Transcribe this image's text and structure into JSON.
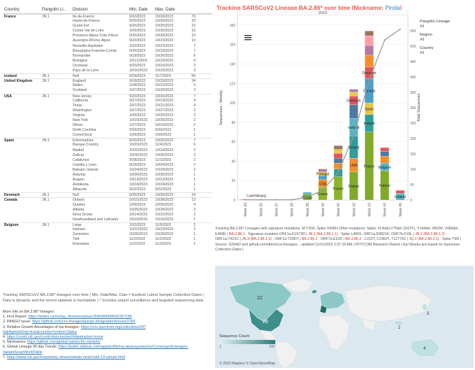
{
  "table": {
    "headers": {
      "country": "Country",
      "lineage": "Pangolin Li..",
      "division": "Division",
      "min": "Min. Date",
      "max": "Max. Date"
    },
    "rows": [
      {
        "country": "France",
        "lineage": "JN.1",
        "division": "Ile-de-France",
        "min": "9/10/2023",
        "max": "10/30/2023",
        "count": "79"
      },
      {
        "country": "",
        "lineage": "",
        "division": "Hauts-de-France",
        "min": "9/25/2023",
        "max": "10/30/2023",
        "count": "25"
      },
      {
        "country": "",
        "lineage": "",
        "division": "Grand Est",
        "min": "9/25/2023",
        "max": "10/30/2023",
        "count": "22"
      },
      {
        "country": "",
        "lineage": "",
        "division": "Centre-Val de Loire",
        "min": "10/9/2023",
        "max": "10/30/2023",
        "count": "16"
      },
      {
        "country": "",
        "lineage": "",
        "division": "Provence-Alpes-Cote d'Azur",
        "min": "9/25/2023",
        "max": "10/30/2023",
        "count": "10"
      },
      {
        "country": "",
        "lineage": "",
        "division": "Auvergne-Rhone-Alpes",
        "min": "9/23/2023",
        "max": "10/23/2023",
        "count": "10"
      },
      {
        "country": "",
        "lineage": "",
        "division": "Nouvelle-Aquitaine",
        "min": "10/2/2023",
        "max": "10/23/2023",
        "count": "7"
      },
      {
        "country": "",
        "lineage": "",
        "division": "Bourgogne-Franche-Comte",
        "min": "9/25/2023",
        "max": "10/23/2023",
        "count": "7"
      },
      {
        "country": "",
        "lineage": "",
        "division": "Normandie",
        "min": "9/18/2023",
        "max": "10/30/2023",
        "count": "6"
      },
      {
        "country": "",
        "lineage": "",
        "division": "Bretagne",
        "min": "10/11/2023",
        "max": "10/23/2023",
        "count": "6"
      },
      {
        "country": "",
        "lineage": "",
        "division": "Occitanie",
        "min": "9/25/2023",
        "max": "10/16/2023",
        "count": "3"
      },
      {
        "country": "",
        "lineage": "",
        "division": "Pays de la Loire",
        "min": "10/16/2023",
        "max": "10/23/2023",
        "count": "3"
      },
      {
        "country": "Iceland",
        "lineage": "JN.1",
        "division": "Null",
        "min": "9/29/2023",
        "max": "11/7/2023",
        "count": "56"
      },
      {
        "country": "United Kingdom",
        "lineage": "JN.1",
        "division": "England",
        "min": "9/18/2023",
        "max": "10/29/2023",
        "count": "34"
      },
      {
        "country": "",
        "lineage": "",
        "division": "Wales",
        "min": "10/8/2023",
        "max": "10/22/2023",
        "count": "5"
      },
      {
        "country": "",
        "lineage": "",
        "division": "Scotland",
        "min": "10/7/2023",
        "max": "10/29/2023",
        "count": "2"
      },
      {
        "country": "USA",
        "lineage": "JN.1",
        "division": "New Jersey",
        "min": "9/20/2023",
        "max": "10/16/2023",
        "count": "7"
      },
      {
        "country": "",
        "lineage": "",
        "division": "California",
        "min": "9/27/2023",
        "max": "10/19/2023",
        "count": "4"
      },
      {
        "country": "",
        "lineage": "",
        "division": "Texas",
        "min": "10/7/2023",
        "max": "10/21/2023",
        "count": "4"
      },
      {
        "country": "",
        "lineage": "",
        "division": "Washington",
        "min": "10/7/2023",
        "max": "10/27/2023",
        "count": "2"
      },
      {
        "country": "",
        "lineage": "",
        "division": "Virginia",
        "min": "10/9/2023",
        "max": "10/20/2023",
        "count": "2"
      },
      {
        "country": "",
        "lineage": "",
        "division": "New York",
        "min": "10/19/2023",
        "max": "10/30/2023",
        "count": "2"
      },
      {
        "country": "",
        "lineage": "",
        "division": "Illinois",
        "min": "10/7/2023",
        "max": "10/19/2023",
        "count": "2"
      },
      {
        "country": "",
        "lineage": "",
        "division": "North Carolina",
        "min": "9/29/2023",
        "max": "9/29/2023",
        "count": "1"
      },
      {
        "country": "",
        "lineage": "",
        "division": "Connecticut",
        "min": "10/9/2023",
        "max": "10/9/2023",
        "count": "1"
      },
      {
        "country": "Spain",
        "lineage": "JN.1",
        "division": "Extremadura",
        "min": "9/25/2023",
        "max": "10/26/2023",
        "count": "7"
      },
      {
        "country": "",
        "lineage": "",
        "division": "Basque Country",
        "min": "10/23/2023",
        "max": "11/4/2023",
        "count": "5"
      },
      {
        "country": "",
        "lineage": "",
        "division": "Madrid",
        "min": "10/20/2023",
        "max": "10/24/2023",
        "count": "2"
      },
      {
        "country": "",
        "lineage": "",
        "division": "Galicia",
        "min": "10/26/2023",
        "max": "10/26/2023",
        "count": "2"
      },
      {
        "country": "",
        "lineage": "",
        "division": "Catalunya",
        "min": "9/28/2023",
        "max": "11/1/2023",
        "count": "2"
      },
      {
        "country": "",
        "lineage": "",
        "division": "Castilla y Leon",
        "min": "9/29/2023",
        "max": "10/24/2023",
        "count": "2"
      },
      {
        "country": "",
        "lineage": "",
        "division": "Balearic Islands",
        "min": "10/24/2023",
        "max": "10/24/2023",
        "count": "2"
      },
      {
        "country": "",
        "lineage": "",
        "division": "Asturias",
        "min": "10/30/2023",
        "max": "10/30/2023",
        "count": "1"
      },
      {
        "country": "",
        "lineage": "",
        "division": "Aragon",
        "min": "10/13/2023",
        "max": "10/13/2023",
        "count": "1"
      },
      {
        "country": "",
        "lineage": "",
        "division": "Andalusia",
        "min": "10/24/2023",
        "max": "10/24/2023",
        "count": "1"
      },
      {
        "country": "",
        "lineage": "",
        "division": "Albacete",
        "min": "9/22/2023",
        "max": "9/22/2023",
        "count": "1"
      },
      {
        "country": "Denmark",
        "lineage": "JN.1",
        "division": "Null",
        "min": "9/25/2023",
        "max": "10/30/2023",
        "count": "24"
      },
      {
        "country": "Canada",
        "lineage": "JN.1",
        "division": "Ontario",
        "min": "10/15/2023",
        "max": "10/28/2023",
        "count": "13"
      },
      {
        "country": "",
        "lineage": "",
        "division": "Quebec",
        "min": "10/9/2023",
        "max": "10/30/2023",
        "count": "4"
      },
      {
        "country": "",
        "lineage": "",
        "division": "Alberta",
        "min": "10/25/2023",
        "max": "10/29/2023",
        "count": "3"
      },
      {
        "country": "",
        "lineage": "",
        "division": "Nova Scotia",
        "min": "10/14/2023",
        "max": "10/22/2023",
        "count": "2"
      },
      {
        "country": "",
        "lineage": "",
        "division": "Newfoundland and Labrador",
        "min": "10/16/2023",
        "max": "10/16/2023",
        "count": "1"
      },
      {
        "country": "Belgium",
        "lineage": "JN.1",
        "division": "Liege",
        "min": "10/2/2023",
        "max": "11/5/2023",
        "count": "2"
      },
      {
        "country": "",
        "lineage": "",
        "division": "Hainaut",
        "min": "10/22/2023",
        "max": "10/23/2023",
        "count": "2"
      },
      {
        "country": "",
        "lineage": "",
        "division": "Zaventem",
        "min": "10/29/2023",
        "max": "10/29/2023",
        "count": "1"
      },
      {
        "country": "",
        "lineage": "",
        "division": "Tielt",
        "min": "11/2/2023",
        "max": "11/2/2023",
        "count": "1"
      },
      {
        "country": "",
        "lineage": "",
        "division": "Roeselare",
        "min": "11/2/2023",
        "max": "11/2/2023",
        "count": "1"
      }
    ]
  },
  "footnote": "Tracking SARSCoV2 BA.2.86* lineages over time ( Min. Date/Max. Date = Earliest/ Latest Sample Collection Dates | Data is dynamic and the recent epiweek is incomplete ) * Includes airport surveillance and targeted sequencing data",
  "more_info": {
    "heading": "More info on BA.2.86* lineages:",
    "items": [
      {
        "label": "1. First Report: ",
        "link": "https://twitter.com/shay_fleishon/status/1690484068642357248"
      },
      {
        "label": "2. PANGO Issue: ",
        "link": "https://github.com/cov-lineages/pango-designation/issues/2183"
      },
      {
        "label": "3. Relative Growth Advantages of top lineages: ",
        "link": "https://cov-spectrum.org/collections/24?highlightedOnly=true&country=United+States"
      },
      {
        "label": "4. ",
        "link": "https://covid.cdc.gov/covid-data-tracker/#datatracker-home"
      },
      {
        "label": "5. Nicknames: ",
        "link": "https://github.com/global-names-for-variants/"
      },
      {
        "label": "6. Global Lineage 30 day Trends: ",
        "link": "https://public.tableau.com/app/profile/raj.rajnarayanan/viz/ConvergentLineages-VariantSoup/WorldTable"
      },
      {
        "label": "7. ",
        "link": "https://www.cdc.gov/respiratory-viruses/whats-new/covid-19-variant.html"
      }
    ]
  },
  "chart_title": {
    "prefix": "Tracking SARSCoV2 Lineage BA.2.86* over time (Nickname: ",
    "nickname": "Pirola",
    "suffix": ")"
  },
  "legend": {
    "pangolin_label": "Pangolin Lineage",
    "pangolin_value": "All",
    "region_label": "Region",
    "region_value": "All",
    "country_label": "Country",
    "country_value": "All"
  },
  "chart_data": {
    "type": "bar",
    "year_label": "2023",
    "ylabel_left": "Sequences - Weekly",
    "ylabel_right": "Total Sequences",
    "ylim_left": [
      0,
      190
    ],
    "ylim_right": [
      0,
      600
    ],
    "left_ticks": [
      0,
      20,
      40,
      60,
      80,
      100,
      120,
      140,
      160,
      180
    ],
    "right_ticks": [
      0,
      50,
      100,
      150,
      200,
      250,
      300,
      350,
      400,
      450,
      500,
      550
    ],
    "categories": [
      "Week 34",
      "Week 35",
      "Week 37",
      "Week 38",
      "Week 39",
      "Week 40",
      "Week 41",
      "Week 42",
      "Week 43",
      "Week 44",
      "Week 45"
    ],
    "stacks": [
      [
        {
          "country": "Luxembourg",
          "value": 1,
          "color": "#d96f9f"
        }
      ],
      [],
      [],
      [],
      [
        {
          "country": "France",
          "value": 6,
          "color": "#7faa2a"
        },
        {
          "country": "",
          "value": 2,
          "color": "#4bb3b0"
        }
      ],
      [
        {
          "country": "France",
          "value": 13,
          "color": "#8db52c"
        },
        {
          "country": "USA",
          "value": 8,
          "color": "#f28e2b"
        },
        {
          "country": "",
          "value": 4,
          "color": "#4aa0c8"
        },
        {
          "country": "Portugal",
          "value": 4,
          "color": "#e7c64a"
        },
        {
          "country": "",
          "value": 3,
          "color": "#b07aa1"
        }
      ],
      [
        {
          "country": "France",
          "value": 24,
          "color": "#8db52c"
        },
        {
          "country": "",
          "value": 8,
          "color": "#2f9e9a"
        },
        {
          "country": "",
          "value": 6,
          "color": "#f28e2b"
        },
        {
          "country": "",
          "value": 5,
          "color": "#4e79a7"
        },
        {
          "country": "",
          "value": 5,
          "color": "#e15759"
        },
        {
          "country": "",
          "value": 4,
          "color": "#edc948"
        },
        {
          "country": "",
          "value": 4,
          "color": "#9c755f"
        }
      ],
      [
        {
          "country": "France",
          "value": 29,
          "color": "#7faa2a"
        },
        {
          "country": "USA",
          "value": 14,
          "color": "#f28e2b"
        },
        {
          "country": "Iceland",
          "value": 23,
          "color": "#2f9e9a"
        },
        {
          "country": "Iceland",
          "value": 18,
          "color": "#59b4c3"
        },
        {
          "country": "",
          "value": 14,
          "color": "#4e79a7"
        },
        {
          "country": "Denmark",
          "value": 9,
          "color": "#e15759"
        },
        {
          "country": "",
          "value": 4,
          "color": "#edc948"
        },
        {
          "country": "",
          "value": 3,
          "color": "#b07aa1"
        }
      ],
      [
        {
          "country": "France",
          "value": 70,
          "color": "#7faa2a"
        },
        {
          "country": "Iceland",
          "value": 18,
          "color": "#2f9e9a"
        },
        {
          "country": "Spain",
          "value": 12,
          "color": "#e7c64a"
        },
        {
          "country": "Canada",
          "value": 25,
          "color": "#4aa0c8"
        },
        {
          "country": "Denmark",
          "value": 12,
          "color": "#e15759"
        },
        {
          "country": "",
          "value": 12,
          "color": "#f28e2b"
        },
        {
          "country": "",
          "value": 10,
          "color": "#b07aa1"
        },
        {
          "country": "",
          "value": 10,
          "color": "#ff9da7"
        },
        {
          "country": "",
          "value": 5,
          "color": "#9c755f"
        }
      ],
      [
        {
          "country": "France",
          "value": 30,
          "color": "#7faa2a"
        },
        {
          "country": "Belgium",
          "value": 8,
          "color": "#59b4c3"
        },
        {
          "country": "",
          "value": 7,
          "color": "#f28e2b"
        },
        {
          "country": "",
          "value": 5,
          "color": "#4e79a7"
        },
        {
          "country": "",
          "value": 4,
          "color": "#e15759"
        }
      ],
      [
        {
          "country": "Iceland",
          "value": 7,
          "color": "#59b4c3"
        },
        {
          "country": "",
          "value": 3,
          "color": "#e15759"
        }
      ]
    ],
    "cumulative": [
      1,
      1,
      1,
      1,
      9,
      32,
      90,
      210,
      390,
      520,
      555
    ]
  },
  "description": {
    "part1": "Tracking BA.2.86* Lineages with signature mutations: M:T30A, Spike:V445H Other mutations: Spike: I4,I6del,V70del (SGTF), Y144del, I452W, V483del, E484K | ",
    "p1": "BA.2.86.1",
    "part2": " : Signature mutation ORF1a:K1973R | ",
    "p2": "JN.1 (BA.2.86.1.1)",
    "part3": " : Spike L455S, ORF1a:R3821K, ORF7b:F19L | ",
    "p3": "JN.2 (BA.2.86.1.2)",
    "part4": " : ORF1a:Y621C | ",
    "p4": "JN.3 (BA.2.86.1.3)",
    "part5": " : ORF1a:T2087I | ",
    "p5": "BA.2.86.2",
    "part6": " : ORF7a:E22D | ",
    "p6": "BA.2.86.3",
    "part7": " : C222T, C1960T, T12775C | ",
    "p7": "JQ.1 (BA.2.86.3.1)",
    "part8": " : Spike T95I | Source: GISAID and github.com/dbnn/cov-lineages... updated 11/11/2023 2:37:16 AM | NYITCOM Research Report | Epi Weeks are based on Specimen Collection Dates |"
  },
  "map": {
    "legend_title": "Sequence Count",
    "legend_min": "1",
    "legend_max": "197",
    "credit": "© 2023 Mapbox © OpenStreetMap",
    "labels": [
      "22",
      "28",
      "2",
      "4",
      "3"
    ],
    "ocean_color": "#dbe8ef",
    "land_color": "#f1f1f1",
    "fill_color": "#8cc9c6"
  }
}
